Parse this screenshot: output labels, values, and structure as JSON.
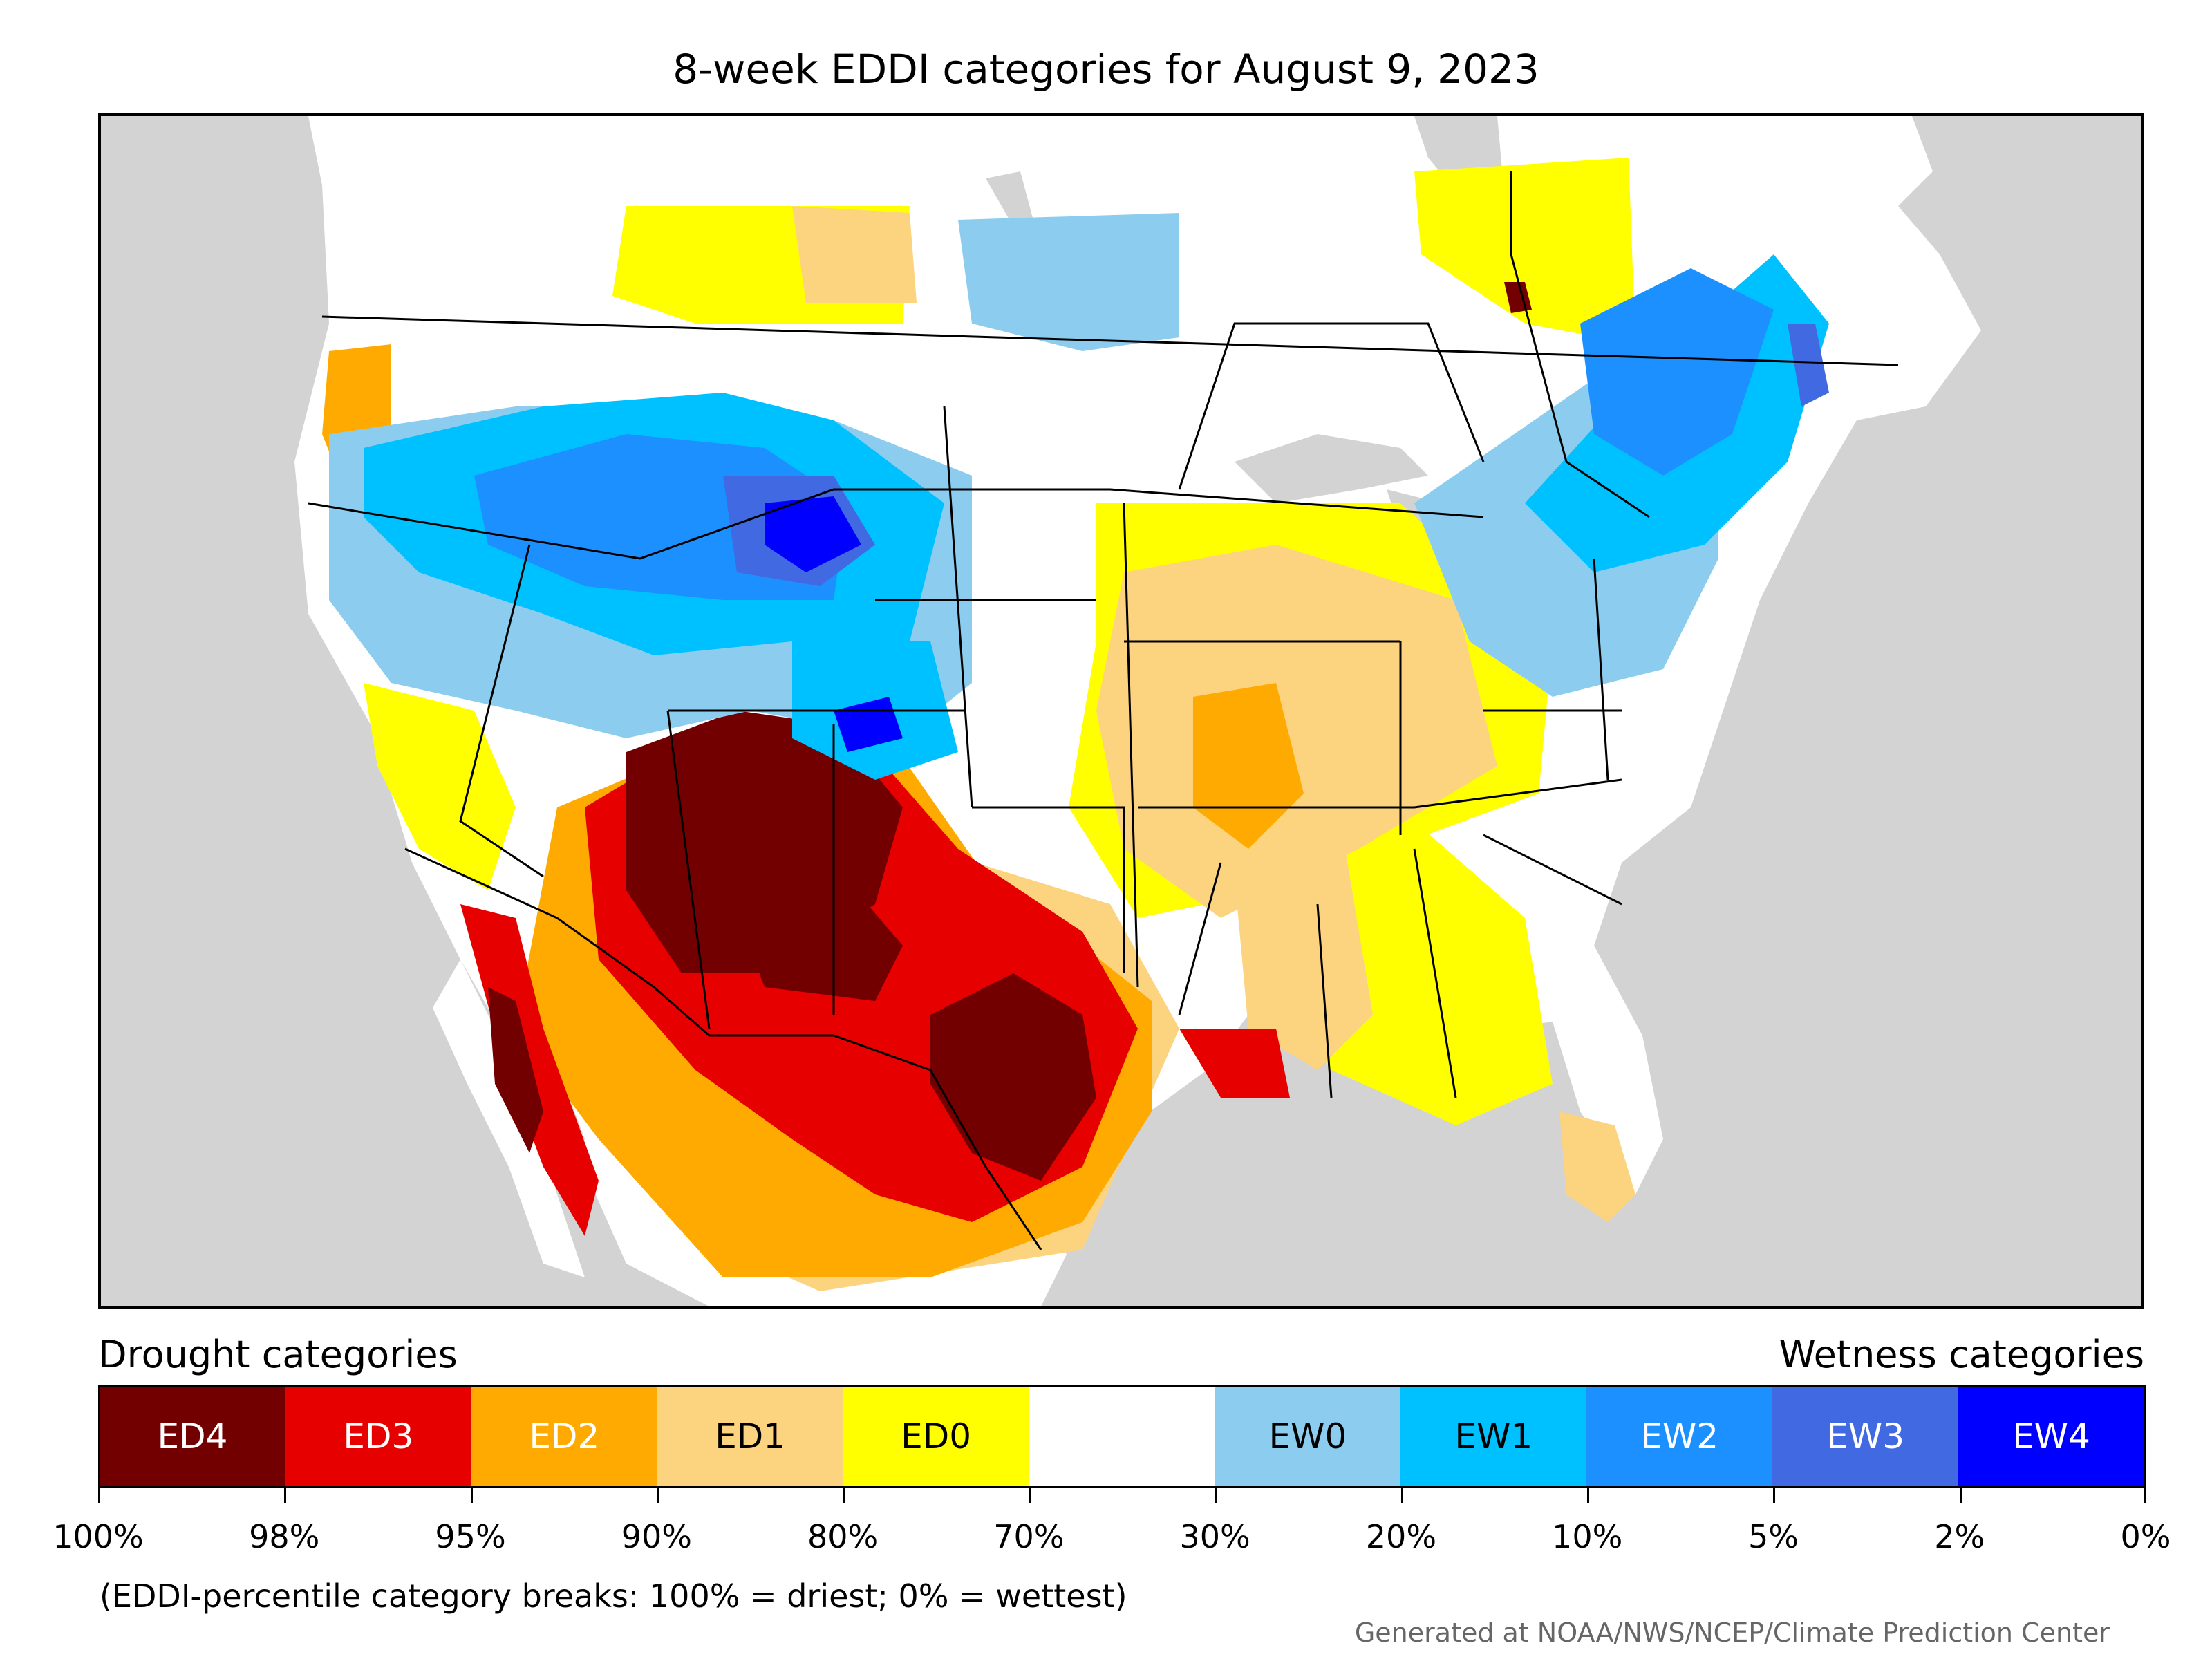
{
  "title": "8-week EDDI categories for August 9, 2023",
  "map": {
    "legend_drought_title": "Drought categories",
    "legend_wetness_title": "Wetness categories",
    "colors": {
      "land_background": "#ffffff",
      "water_nonus": "#d3d3d3",
      "ED4": "#730000",
      "ED3": "#e60000",
      "ED2": "#ffaa00",
      "ED1": "#fcd37f",
      "ED0": "#ffff00",
      "neutral": "#ffffff",
      "EW0": "#8ccdef",
      "EW1": "#00c1ff",
      "EW2": "#1d90ff",
      "EW3": "#4169e1",
      "EW4": "#0000ff"
    },
    "categories": [
      {
        "label": "ED4",
        "color": "#730000",
        "text_color": "#ffffff"
      },
      {
        "label": "ED3",
        "color": "#e60000",
        "text_color": "#ffffff"
      },
      {
        "label": "ED2",
        "color": "#ffaa00",
        "text_color": "#ffffff"
      },
      {
        "label": "ED1",
        "color": "#fcd37f",
        "text_color": "#000000"
      },
      {
        "label": "ED0",
        "color": "#ffff00",
        "text_color": "#000000"
      },
      {
        "label": "",
        "color": "#ffffff",
        "text_color": "#000000"
      },
      {
        "label": "EW0",
        "color": "#8ccdef",
        "text_color": "#000000"
      },
      {
        "label": "EW1",
        "color": "#00c1ff",
        "text_color": "#000000"
      },
      {
        "label": "EW2",
        "color": "#1d90ff",
        "text_color": "#ffffff"
      },
      {
        "label": "EW3",
        "color": "#4169e1",
        "text_color": "#ffffff"
      },
      {
        "label": "EW4",
        "color": "#0000ff",
        "text_color": "#ffffff"
      }
    ],
    "tick_labels": [
      "100%",
      "98%",
      "95%",
      "90%",
      "80%",
      "70%",
      "30%",
      "20%",
      "10%",
      "5%",
      "2%",
      "0%"
    ],
    "note": "(EDDI-percentile category breaks: 100% = driest; 0% = wettest)",
    "credit": "Generated at NOAA/NWS/NCEP/Climate Prediction Center"
  }
}
